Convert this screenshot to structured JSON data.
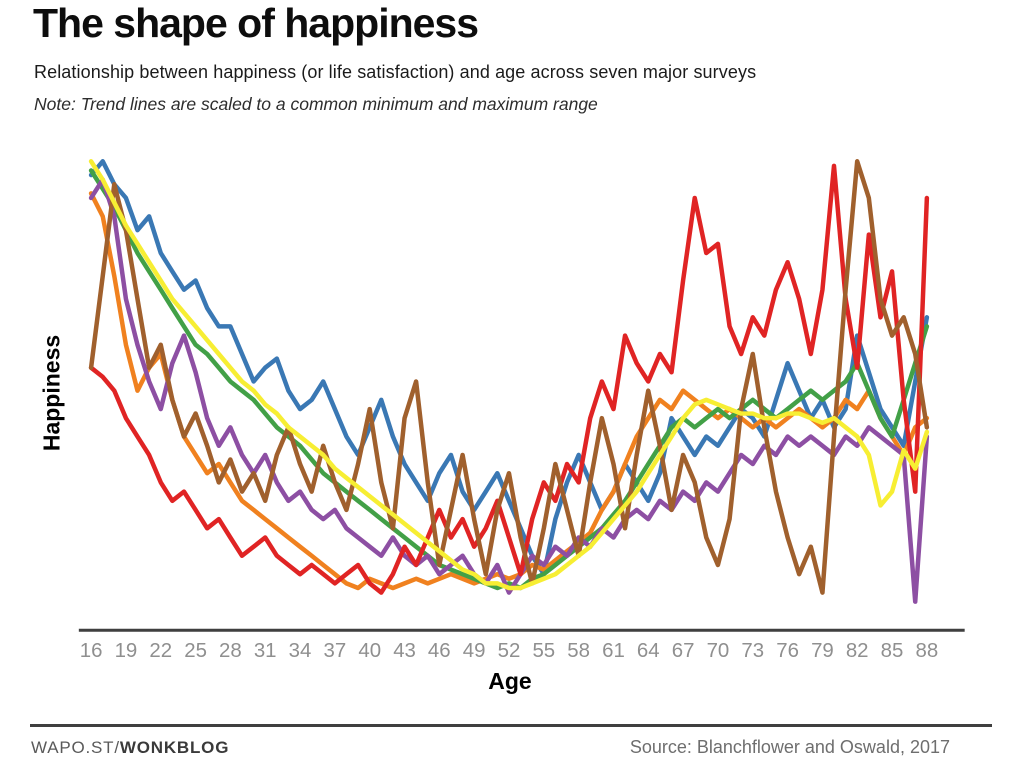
{
  "header": {
    "title": "The shape of happiness",
    "subtitle": "Relationship between happiness (or life satisfaction) and age across seven major surveys",
    "note": "Note: Trend lines are scaled to a common minimum and maximum range"
  },
  "footer": {
    "brand_prefix": "WAPO.ST/",
    "brand_bold": "WONKBLOG",
    "source": "Source: Blanchflower and Oswald, 2017"
  },
  "chart_data": {
    "type": "line",
    "title": "The shape of happiness",
    "xlabel": "Age",
    "ylabel": "Happiness",
    "x_range": [
      16,
      88
    ],
    "x_ticks": [
      16,
      19,
      22,
      25,
      28,
      31,
      34,
      37,
      40,
      43,
      46,
      49,
      52,
      55,
      58,
      61,
      64,
      67,
      70,
      73,
      76,
      79,
      82,
      85,
      88
    ],
    "y_range": [
      0,
      100
    ],
    "y_ticks": [],
    "y_note": "No y-axis ticks shown; series normalized to a common min/max (values estimated 0-100)",
    "grid": false,
    "legend": "none",
    "axis_color": "#3f3f3f",
    "tick_label_color": "#8f8f8f",
    "x_step_per_point": 1,
    "series": [
      {
        "name": "blue",
        "color": "#3a78b4",
        "values": [
          97,
          100,
          95,
          92,
          85,
          88,
          80,
          76,
          72,
          74,
          68,
          64,
          64,
          58,
          52,
          55,
          57,
          50,
          46,
          48,
          52,
          46,
          40,
          36,
          42,
          48,
          40,
          34,
          30,
          26,
          32,
          36,
          28,
          24,
          28,
          32,
          26,
          20,
          14,
          10,
          22,
          30,
          36,
          30,
          24,
          28,
          34,
          30,
          26,
          32,
          44,
          40,
          36,
          40,
          38,
          42,
          46,
          44,
          40,
          48,
          56,
          50,
          44,
          48,
          42,
          46,
          62,
          54,
          46,
          42,
          38,
          52,
          66
        ]
      },
      {
        "name": "orange",
        "color": "#f0811f",
        "values": [
          93,
          88,
          75,
          60,
          50,
          55,
          58,
          48,
          40,
          36,
          32,
          34,
          30,
          26,
          24,
          22,
          20,
          18,
          16,
          14,
          12,
          10,
          8,
          7,
          9,
          8,
          7,
          8,
          9,
          8,
          9,
          10,
          9,
          8,
          9,
          10,
          9,
          10,
          12,
          11,
          13,
          15,
          17,
          19,
          24,
          28,
          34,
          40,
          44,
          48,
          46,
          50,
          48,
          46,
          44,
          46,
          44,
          42,
          44,
          42,
          44,
          46,
          44,
          42,
          44,
          48,
          46,
          50,
          44,
          40,
          36,
          42,
          44
        ]
      },
      {
        "name": "green",
        "color": "#42a047",
        "values": [
          98,
          94,
          90,
          85,
          80,
          76,
          72,
          68,
          64,
          60,
          58,
          55,
          52,
          50,
          48,
          45,
          42,
          40,
          38,
          35,
          32,
          30,
          28,
          26,
          24,
          22,
          20,
          18,
          16,
          14,
          12,
          11,
          10,
          9,
          8,
          7,
          8,
          7,
          9,
          10,
          12,
          14,
          16,
          18,
          20,
          23,
          26,
          30,
          34,
          38,
          42,
          44,
          42,
          44,
          46,
          44,
          46,
          48,
          46,
          44,
          46,
          48,
          50,
          48,
          50,
          52,
          56,
          50,
          44,
          40,
          48,
          56,
          64
        ]
      },
      {
        "name": "purple",
        "color": "#8d4fa3",
        "values": [
          92,
          96,
          88,
          70,
          60,
          52,
          46,
          56,
          62,
          54,
          44,
          38,
          42,
          36,
          32,
          36,
          30,
          26,
          28,
          24,
          22,
          24,
          20,
          18,
          16,
          14,
          18,
          14,
          12,
          14,
          10,
          12,
          14,
          10,
          8,
          12,
          6,
          10,
          14,
          12,
          16,
          14,
          18,
          16,
          20,
          18,
          22,
          24,
          22,
          26,
          24,
          28,
          26,
          30,
          28,
          32,
          36,
          34,
          38,
          36,
          40,
          38,
          40,
          38,
          36,
          40,
          38,
          42,
          40,
          38,
          36,
          4,
          40
        ]
      },
      {
        "name": "red",
        "color": "#e02424",
        "values": [
          55,
          53,
          50,
          44,
          40,
          36,
          30,
          26,
          28,
          24,
          20,
          22,
          18,
          14,
          16,
          18,
          14,
          12,
          10,
          12,
          10,
          8,
          10,
          12,
          8,
          6,
          10,
          16,
          12,
          18,
          24,
          18,
          22,
          16,
          20,
          26,
          18,
          10,
          22,
          30,
          26,
          34,
          30,
          44,
          52,
          46,
          62,
          56,
          52,
          58,
          54,
          74,
          92,
          80,
          82,
          64,
          58,
          66,
          62,
          72,
          78,
          70,
          58,
          72,
          99,
          70,
          55,
          84,
          66,
          76,
          48,
          28,
          92
        ]
      },
      {
        "name": "brown",
        "color": "#a0602d",
        "values": [
          55,
          75,
          95,
          85,
          70,
          55,
          60,
          48,
          40,
          45,
          38,
          30,
          35,
          28,
          32,
          26,
          36,
          42,
          34,
          28,
          38,
          30,
          24,
          34,
          46,
          30,
          20,
          44,
          52,
          30,
          12,
          24,
          36,
          22,
          10,
          24,
          32,
          18,
          8,
          20,
          34,
          24,
          14,
          30,
          44,
          34,
          20,
          36,
          50,
          38,
          24,
          36,
          30,
          18,
          12,
          22,
          46,
          58,
          42,
          28,
          18,
          10,
          16,
          6,
          40,
          72,
          100,
          92,
          70,
          62,
          66,
          58,
          42
        ]
      },
      {
        "name": "yellow",
        "color": "#f7ee33",
        "values": [
          100,
          96,
          91,
          86,
          82,
          78,
          74,
          70,
          67,
          64,
          61,
          58,
          55,
          52,
          50,
          47,
          45,
          42,
          40,
          38,
          36,
          33,
          31,
          29,
          27,
          25,
          23,
          21,
          19,
          17,
          15,
          13,
          11,
          10,
          8,
          8,
          7,
          7,
          8,
          9,
          10,
          12,
          14,
          16,
          19,
          22,
          25,
          28,
          32,
          36,
          40,
          44,
          47,
          48,
          47,
          46,
          45,
          45,
          44,
          44,
          45,
          45,
          44,
          43,
          44,
          42,
          40,
          36,
          25,
          28,
          37,
          33,
          41
        ]
      }
    ]
  }
}
